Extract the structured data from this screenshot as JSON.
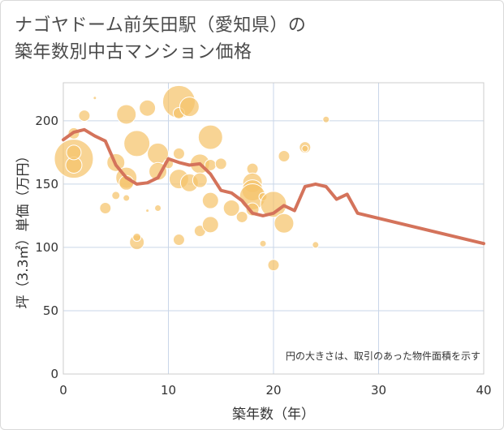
{
  "title_lines": [
    "ナゴヤドーム前矢田駅（愛知県）の",
    "築年数別中古マンション価格"
  ],
  "note": "円の大きさは、取引のあった物件面積を示す",
  "colors": {
    "bubble": "#f5c36b",
    "line": "#d4735b",
    "grid": "#c9d6e8",
    "plot_border": "#cccccc",
    "text": "#333333"
  },
  "chart_data": {
    "type": "scatter",
    "xlabel": "築年数（年）",
    "ylabel": "坪（3.3㎡）単価（万円）",
    "xlim": [
      0,
      40
    ],
    "ylim": [
      0,
      230
    ],
    "xticks": [
      0,
      10,
      20,
      30,
      40
    ],
    "yticks": [
      0,
      50,
      100,
      150,
      200
    ],
    "bubbles": [
      {
        "x": 1,
        "y": 170,
        "r": 24
      },
      {
        "x": 1,
        "y": 165,
        "r": 10
      },
      {
        "x": 1,
        "y": 175,
        "r": 9
      },
      {
        "x": 1,
        "y": 190,
        "r": 7
      },
      {
        "x": 2,
        "y": 204,
        "r": 7
      },
      {
        "x": 3,
        "y": 218,
        "r": 2
      },
      {
        "x": 4,
        "y": 131,
        "r": 7
      },
      {
        "x": 5,
        "y": 167,
        "r": 11
      },
      {
        "x": 5,
        "y": 141,
        "r": 5
      },
      {
        "x": 6,
        "y": 205,
        "r": 12
      },
      {
        "x": 6,
        "y": 155,
        "r": 13
      },
      {
        "x": 6,
        "y": 151,
        "r": 9
      },
      {
        "x": 6,
        "y": 139,
        "r": 4
      },
      {
        "x": 7,
        "y": 182,
        "r": 16
      },
      {
        "x": 7,
        "y": 104,
        "r": 9
      },
      {
        "x": 7,
        "y": 108,
        "r": 5
      },
      {
        "x": 8,
        "y": 210,
        "r": 10
      },
      {
        "x": 8,
        "y": 129,
        "r": 2
      },
      {
        "x": 9,
        "y": 174,
        "r": 13
      },
      {
        "x": 9,
        "y": 160,
        "r": 11
      },
      {
        "x": 9,
        "y": 131,
        "r": 4
      },
      {
        "x": 10,
        "y": 166,
        "r": 6
      },
      {
        "x": 11,
        "y": 215,
        "r": 20
      },
      {
        "x": 11,
        "y": 206,
        "r": 7
      },
      {
        "x": 11,
        "y": 174,
        "r": 7
      },
      {
        "x": 11,
        "y": 154,
        "r": 12
      },
      {
        "x": 11,
        "y": 106,
        "r": 7
      },
      {
        "x": 12,
        "y": 211,
        "r": 12
      },
      {
        "x": 12,
        "y": 151,
        "r": 11
      },
      {
        "x": 13,
        "y": 166,
        "r": 12
      },
      {
        "x": 13,
        "y": 153,
        "r": 9
      },
      {
        "x": 13,
        "y": 113,
        "r": 7
      },
      {
        "x": 14,
        "y": 187,
        "r": 15
      },
      {
        "x": 14,
        "y": 165,
        "r": 7
      },
      {
        "x": 14,
        "y": 137,
        "r": 10
      },
      {
        "x": 14,
        "y": 118,
        "r": 10
      },
      {
        "x": 15,
        "y": 166,
        "r": 7
      },
      {
        "x": 16,
        "y": 131,
        "r": 10
      },
      {
        "x": 17,
        "y": 124,
        "r": 7
      },
      {
        "x": 18,
        "y": 162,
        "r": 7
      },
      {
        "x": 18,
        "y": 151,
        "r": 12
      },
      {
        "x": 18,
        "y": 145,
        "r": 13
      },
      {
        "x": 18,
        "y": 140,
        "r": 16
      },
      {
        "x": 18,
        "y": 130,
        "r": 8
      },
      {
        "x": 19,
        "y": 140,
        "r": 5
      },
      {
        "x": 19,
        "y": 103,
        "r": 4
      },
      {
        "x": 20,
        "y": 134,
        "r": 16
      },
      {
        "x": 20,
        "y": 86,
        "r": 7
      },
      {
        "x": 21,
        "y": 172,
        "r": 7
      },
      {
        "x": 21,
        "y": 119,
        "r": 12
      },
      {
        "x": 23,
        "y": 179,
        "r": 7
      },
      {
        "x": 23,
        "y": 178,
        "r": 4
      },
      {
        "x": 24,
        "y": 102,
        "r": 4
      },
      {
        "x": 25,
        "y": 201,
        "r": 4
      }
    ],
    "trend": {
      "x": [
        0,
        1,
        2,
        3,
        4,
        5,
        6,
        7,
        8,
        9,
        10,
        11,
        12,
        13,
        14,
        15,
        16,
        17,
        18,
        19,
        20,
        21,
        22,
        23,
        24,
        25,
        26,
        27,
        28,
        40
      ],
      "y": [
        185,
        191,
        193,
        188,
        184,
        165,
        155,
        150,
        151,
        155,
        170,
        167,
        165,
        166,
        158,
        145,
        143,
        137,
        127,
        125,
        127,
        133,
        129,
        148,
        150,
        148,
        138,
        142,
        127,
        103
      ]
    }
  }
}
